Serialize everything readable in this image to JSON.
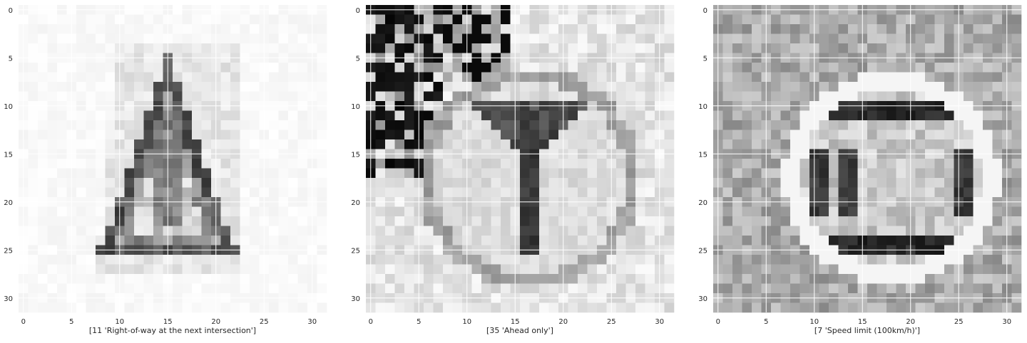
{
  "figure": {
    "panels": [
      {
        "id": "panel-1",
        "xlabel": "[11 'Right-of-way at the next intersection']",
        "style": "triangle"
      },
      {
        "id": "panel-2",
        "xlabel": "[35 'Ahead only']",
        "style": "ahead"
      },
      {
        "id": "panel-3",
        "xlabel": "[7 'Speed limit (100km/h)']",
        "style": "speed"
      }
    ]
  },
  "chart_data": [
    {
      "type": "heatmap",
      "image_size": [
        32,
        32
      ],
      "colormap": "gray",
      "title": "",
      "xlabel": "[11 'Right-of-way at the next intersection']",
      "ylabel": "",
      "xlim": [
        -0.5,
        31.5
      ],
      "ylim": [
        31.5,
        -0.5
      ],
      "xticks": [
        0,
        5,
        10,
        15,
        20,
        25,
        30
      ],
      "yticks": [
        0,
        5,
        10,
        15,
        20,
        25,
        30
      ],
      "grid": true
    },
    {
      "type": "heatmap",
      "image_size": [
        32,
        32
      ],
      "colormap": "gray",
      "title": "",
      "xlabel": "[35 'Ahead only']",
      "ylabel": "",
      "xlim": [
        -0.5,
        31.5
      ],
      "ylim": [
        31.5,
        -0.5
      ],
      "xticks": [
        0,
        5,
        10,
        15,
        20,
        25,
        30
      ],
      "yticks": [
        0,
        5,
        10,
        15,
        20,
        25,
        30
      ],
      "grid": true
    },
    {
      "type": "heatmap",
      "image_size": [
        32,
        32
      ],
      "colormap": "gray",
      "title": "",
      "xlabel": "[7 'Speed limit (100km/h)']",
      "ylabel": "",
      "xlim": [
        -0.5,
        31.5
      ],
      "ylim": [
        31.5,
        -0.5
      ],
      "xticks": [
        0,
        5,
        10,
        15,
        20,
        25,
        30
      ],
      "yticks": [
        0,
        5,
        10,
        15,
        20,
        25,
        30
      ],
      "grid": true
    }
  ]
}
